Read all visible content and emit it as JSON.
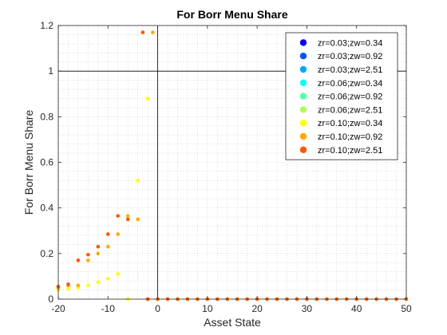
{
  "chart_data": {
    "type": "scatter",
    "title": "For Borr Menu Share",
    "xlabel": "Asset State",
    "ylabel": "For Borr Menu Share",
    "xlim": [
      -20,
      50
    ],
    "ylim": [
      0,
      1.2
    ],
    "xticks": [
      "-20",
      "-10",
      "0",
      "10",
      "20",
      "30",
      "40",
      "50"
    ],
    "xtick_values": [
      -20,
      -10,
      0,
      10,
      20,
      30,
      40,
      50
    ],
    "yticks": [
      "0",
      "0.2",
      "0.4",
      "0.6",
      "0.8",
      "1",
      "1.2"
    ],
    "ytick_values": [
      0,
      0.2,
      0.4,
      0.6,
      0.8,
      1.0,
      1.2
    ],
    "grid": "minor dotted",
    "reference_lines": {
      "x": 0,
      "y": 1
    },
    "legend_position": "top-right",
    "series": [
      {
        "name": "zr=0.03;zw=0.34",
        "color": "#0000ff",
        "x": [],
        "y": []
      },
      {
        "name": "zr=0.03;zw=0.92",
        "color": "#0055ff",
        "x": [],
        "y": []
      },
      {
        "name": "zr=0.03;zw=2.51",
        "color": "#00aaff",
        "x": [],
        "y": []
      },
      {
        "name": "zr=0.06;zw=0.34",
        "color": "#00ffff",
        "x": [],
        "y": []
      },
      {
        "name": "zr=0.06;zw=0.92",
        "color": "#55ffaa",
        "x": [],
        "y": []
      },
      {
        "name": "zr=0.06;zw=2.51",
        "color": "#aaff55",
        "x": [],
        "y": []
      },
      {
        "name": "zr=0.10;zw=0.34",
        "color": "#ffff00",
        "x": [
          -20,
          -18,
          -16,
          -14,
          -12,
          -10,
          -8,
          -6,
          -4,
          -2,
          0,
          2,
          4,
          6,
          8,
          10,
          12,
          14,
          16,
          18,
          20,
          22,
          24,
          26,
          28,
          30,
          32,
          34,
          36,
          38,
          40,
          42,
          44,
          46,
          48,
          50
        ],
        "y": [
          0.04,
          0.045,
          0.05,
          0.06,
          0.075,
          0.09,
          0.11,
          0.0,
          0.52,
          0.88,
          0.0,
          0.0,
          0.0,
          0.0,
          0.0,
          0.0,
          0.0,
          0.0,
          0.0,
          0.0,
          0.0,
          0.0,
          0.0,
          0.0,
          0.0,
          0.0,
          0.0,
          0.0,
          0.0,
          0.0,
          0.0,
          0.0,
          0.0,
          0.0,
          0.0,
          0.0
        ]
      },
      {
        "name": "zr=0.10;zw=0.92",
        "color": "#ffaa00",
        "x": [
          -20,
          -18,
          -16,
          -14,
          -12,
          -10,
          -8,
          -6,
          -4,
          -2,
          -1
        ],
        "y": [
          0.05,
          0.06,
          0.06,
          0.17,
          0.2,
          0.23,
          0.285,
          0.365,
          0.35,
          0.0,
          1.17
        ]
      },
      {
        "name": "zr=0.10;zw=2.51",
        "color": "#ff5500",
        "x": [
          -20,
          -18,
          -16,
          -14,
          -12,
          -10,
          -8,
          -6,
          -3,
          -2,
          0,
          2,
          4,
          6,
          8,
          10,
          12,
          14,
          16,
          18,
          20,
          22,
          24,
          26,
          28,
          30,
          32,
          34,
          36,
          38,
          40,
          42,
          44,
          46,
          48,
          50
        ],
        "y": [
          0.055,
          0.065,
          0.17,
          0.195,
          0.23,
          0.285,
          0.365,
          0.35,
          1.17,
          0.0,
          0.0,
          0.0,
          0.0,
          0.0,
          0.0,
          0.0,
          0.0,
          0.0,
          0.0,
          0.0,
          0.0,
          0.0,
          0.0,
          0.0,
          0.0,
          0.0,
          0.0,
          0.0,
          0.0,
          0.0,
          0.0,
          0.0,
          0.0,
          0.0,
          0.0,
          0.0
        ]
      }
    ]
  }
}
